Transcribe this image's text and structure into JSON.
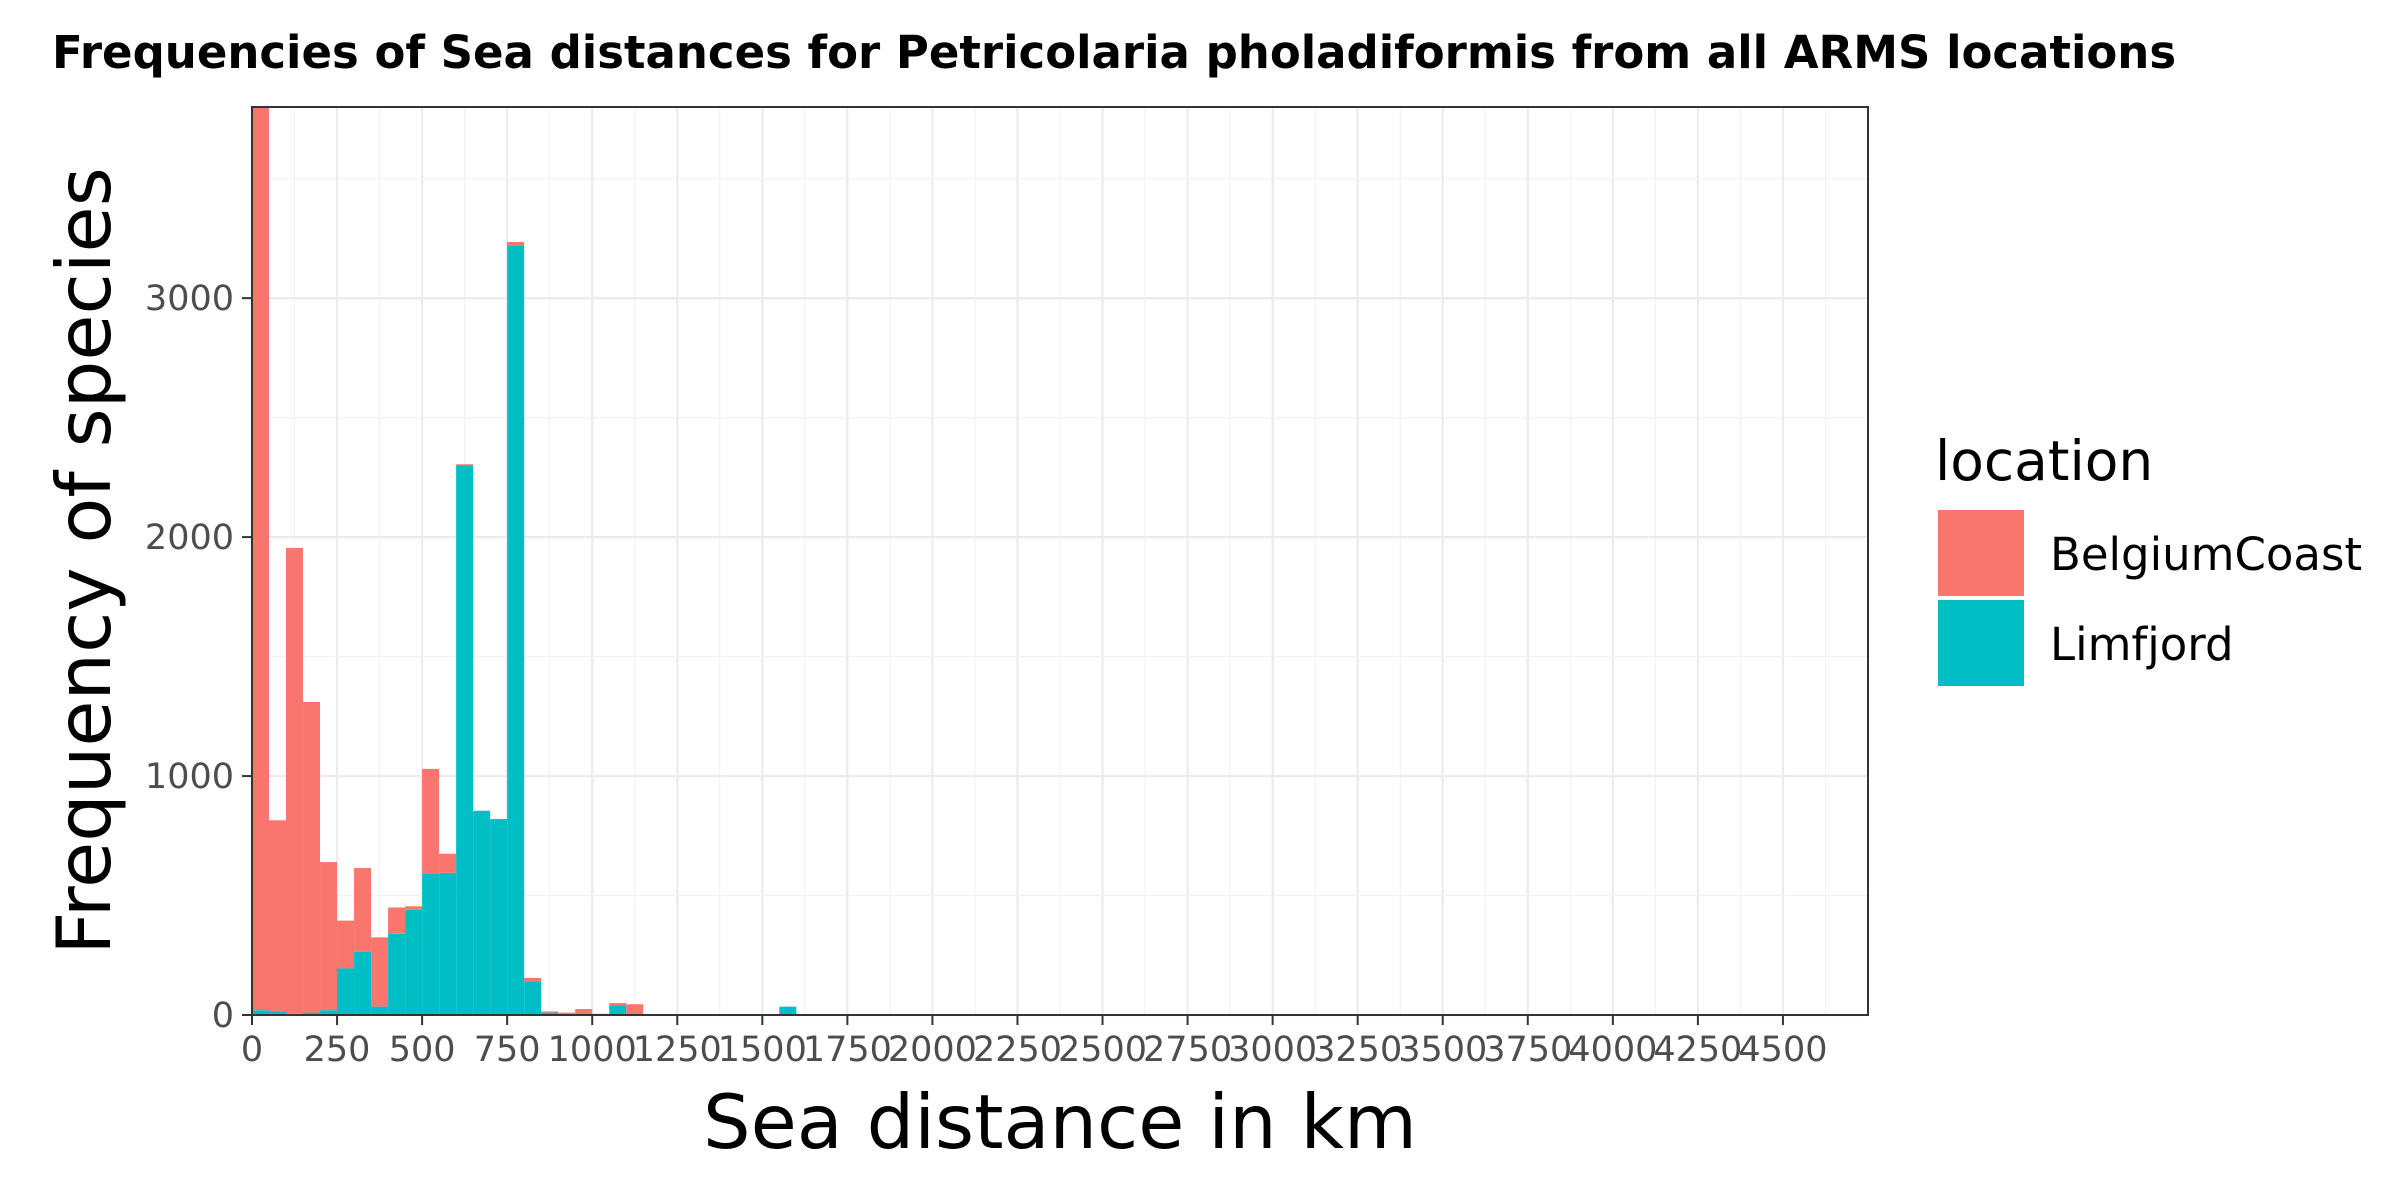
{
  "colors": {
    "BelgiumCoast": "#F8766D",
    "Limfjord": "#00BFC4"
  },
  "chart_data": {
    "type": "bar",
    "title": "Frequencies of Sea distances for Petricolaria pholadiformis from all ARMS locations",
    "xlabel": "Sea distance in km",
    "ylabel": "Frequency of species",
    "xlim": [
      0,
      4750
    ],
    "ylim": [
      0,
      3800
    ],
    "bin_width": 50,
    "stacked": true,
    "grid": true,
    "legend_position": "right",
    "x_ticks": [
      0,
      250,
      500,
      750,
      1000,
      1250,
      1500,
      1750,
      2000,
      2250,
      2500,
      2750,
      3000,
      3250,
      3500,
      3750,
      4000,
      4250,
      4500
    ],
    "x_tick_labels": [
      "0",
      "250",
      "500",
      "750",
      "1000",
      "1250",
      "1500",
      "1750",
      "2000",
      "2250",
      "2500",
      "2750",
      "3000",
      "3250",
      "3500",
      "3750",
      "4000",
      "4250",
      "4500"
    ],
    "y_ticks": [
      0,
      1000,
      2000,
      3000
    ],
    "y_tick_labels": [
      "0",
      "1000",
      "2000",
      "3000"
    ],
    "legend": {
      "title": "location",
      "entries": [
        "BelgiumCoast",
        "Limfjord"
      ]
    },
    "bin_starts": [
      0,
      50,
      100,
      150,
      200,
      250,
      300,
      350,
      400,
      450,
      500,
      550,
      600,
      650,
      700,
      750,
      800,
      850,
      900,
      950,
      1000,
      1050,
      1100,
      1550
    ],
    "series": [
      {
        "name": "BelgiumCoast",
        "values": [
          3780,
          800,
          1950,
          1300,
          620,
          200,
          350,
          290,
          110,
          15,
          440,
          80,
          5,
          0,
          0,
          15,
          15,
          5,
          5,
          25,
          5,
          10,
          45,
          0
        ]
      },
      {
        "name": "Limfjord",
        "values": [
          20,
          15,
          5,
          10,
          20,
          195,
          265,
          35,
          340,
          440,
          590,
          595,
          2300,
          855,
          820,
          3220,
          140,
          10,
          5,
          0,
          0,
          40,
          0,
          35
        ]
      }
    ]
  }
}
